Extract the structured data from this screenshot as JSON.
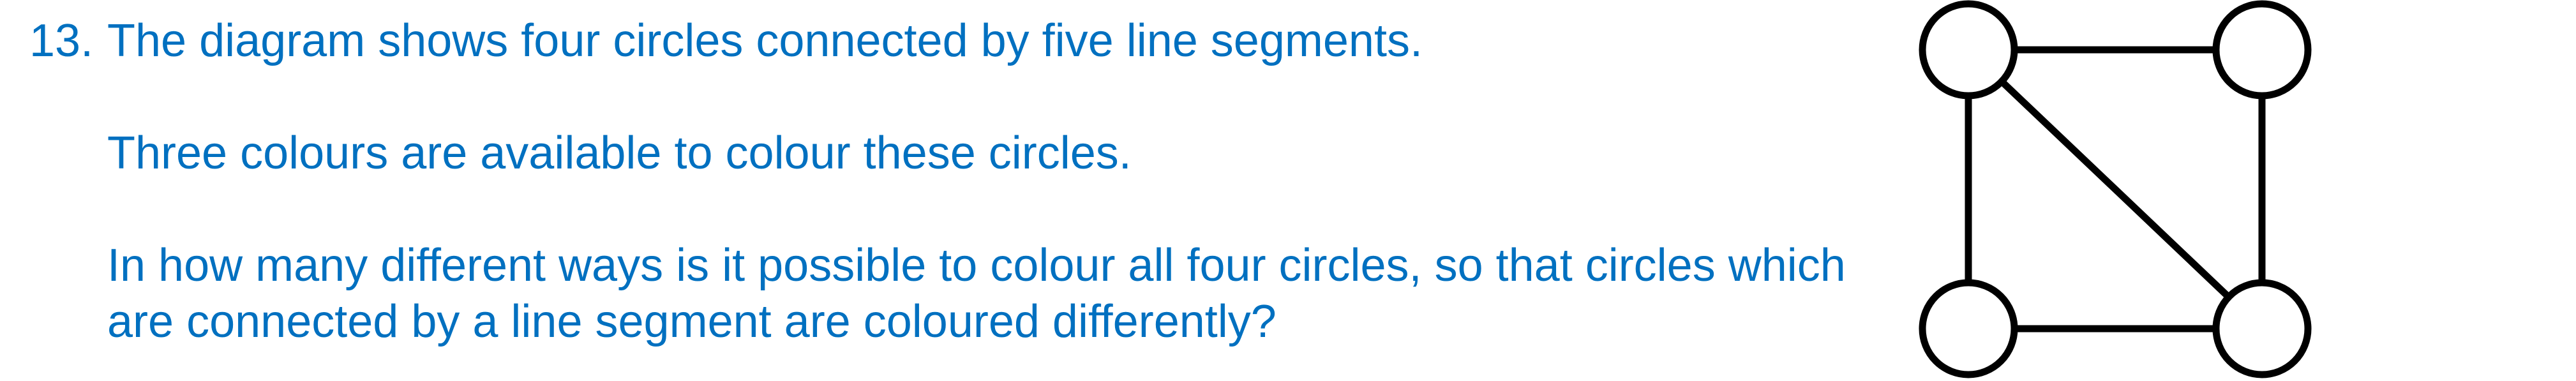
{
  "question": {
    "number": "13.",
    "paragraphs": [
      "The diagram shows four circles connected by five line segments.",
      "Three colours are available to colour these circles.",
      "In how many different ways is it possible to colour all four circles, so that circles which are connected by a line segment are coloured differently?"
    ]
  },
  "diagram": {
    "nodes": [
      "top-left",
      "top-right",
      "bottom-left",
      "bottom-right"
    ],
    "edges": [
      [
        "top-left",
        "top-right"
      ],
      [
        "top-left",
        "bottom-left"
      ],
      [
        "top-left",
        "bottom-right"
      ],
      [
        "top-right",
        "bottom-right"
      ],
      [
        "bottom-left",
        "bottom-right"
      ]
    ],
    "stroke_color": "#000000",
    "fill_color": "#ffffff"
  },
  "colors": {
    "text": "#0070c0"
  }
}
